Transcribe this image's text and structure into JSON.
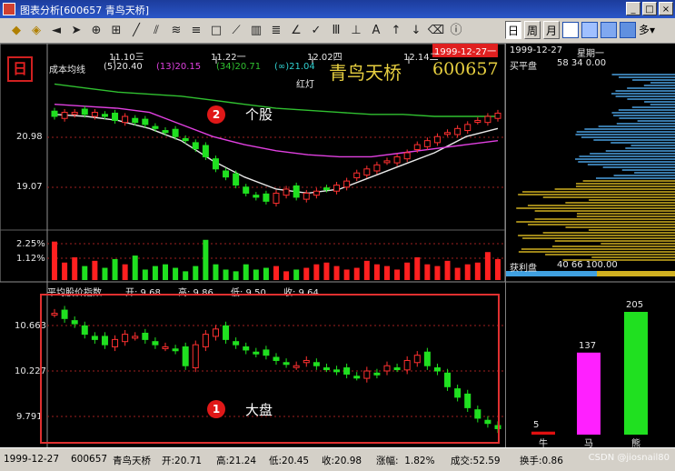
{
  "window": {
    "title": "图表分析[600657 青鸟天桥]",
    "min_label": "_",
    "max_label": "□",
    "close_label": "×"
  },
  "toolbar": {
    "icons": [
      "pin-icon",
      "diamond-icon",
      "arrow-left-icon",
      "cursor-icon",
      "zoom-in-icon",
      "zoom-fit-icon",
      "line-icon",
      "parallel-lines-icon",
      "channel-icon",
      "fan-icon",
      "rectangle-icon",
      "ray-icon",
      "gann-icon",
      "fibonacci-icon",
      "angle-icon",
      "tick-icon",
      "cycle-icon",
      "measure-icon",
      "text-icon",
      "up-arrow-icon",
      "down-arrow-icon",
      "delete-icon",
      "info-icon"
    ],
    "period_day": "日",
    "period_week": "周",
    "period_month": "月",
    "more_label": "多"
  },
  "kline": {
    "indicator_name": "成本均线",
    "ma5": "(5)20.40",
    "ma13": "(13)20.15",
    "ma34": "(34)20.71",
    "ma_inf": "(∞)21.04",
    "stock_name": "青鸟天桥",
    "stock_code": "600657",
    "cursor_date": "1999-12-27一",
    "date_labels": [
      "11.10三",
      "11.22一",
      "12.02四",
      "12.14二"
    ],
    "price_labels": [
      "20.98",
      "19.07"
    ],
    "vol_labels": [
      "2.25%",
      "1.12%"
    ],
    "hongdeng": "红灯",
    "side_logo": "日"
  },
  "chart_data": [
    {
      "type": "candlestick",
      "title": "个股",
      "y_ticks": [
        20.98,
        19.07
      ],
      "ylim": [
        18.2,
        21.8
      ],
      "closes": [
        20.9,
        21.0,
        21.0,
        20.95,
        21.0,
        20.9,
        20.8,
        20.9,
        20.75,
        20.7,
        20.6,
        20.5,
        20.4,
        20.3,
        20.1,
        19.9,
        19.6,
        19.4,
        19.2,
        19.0,
        18.9,
        18.8,
        19.0,
        19.1,
        18.9,
        19.0,
        19.05,
        19.1,
        19.2,
        19.3,
        19.5,
        19.6,
        19.7,
        19.8,
        19.9,
        20.0,
        20.2,
        20.3,
        20.4,
        20.5,
        20.6,
        20.7,
        20.8,
        20.9,
        20.98
      ],
      "ma_series": [
        {
          "name": "(5)",
          "color": "#e8e8e8",
          "values": [
            20.95,
            20.9,
            20.8,
            20.6,
            20.3,
            19.8,
            19.4,
            19.1,
            19.0,
            19.1,
            19.4,
            19.7,
            20.0,
            20.4,
            20.6
          ]
        },
        {
          "name": "(13)",
          "color": "#e040e0",
          "values": [
            21.2,
            21.15,
            21.1,
            21.0,
            20.7,
            20.4,
            20.2,
            20.05,
            19.95,
            19.9,
            19.9,
            20.0,
            20.1,
            20.2,
            20.3
          ]
        },
        {
          "name": "(34)",
          "color": "#30c030",
          "values": [
            21.7,
            21.6,
            21.5,
            21.45,
            21.4,
            21.3,
            21.2,
            21.1,
            21.05,
            21.0,
            20.95,
            20.95,
            20.9,
            20.9,
            20.9
          ]
        }
      ],
      "volume": [
        2.2,
        1.0,
        1.3,
        0.8,
        1.1,
        0.7,
        1.2,
        0.9,
        1.4,
        0.6,
        0.8,
        0.9,
        0.7,
        0.5,
        0.8,
        2.3,
        0.9,
        0.6,
        0.5,
        0.9,
        0.6,
        0.7,
        0.8,
        0.5,
        0.6,
        0.7,
        0.9,
        1.0,
        0.8,
        0.6,
        0.7,
        1.1,
        0.9,
        0.8,
        0.6,
        1.0,
        1.3,
        0.9,
        0.8,
        1.1,
        0.7,
        0.9,
        1.0,
        1.6,
        1.2
      ]
    },
    {
      "type": "candlestick",
      "title": "大盘",
      "y_ticks": [
        10.663,
        10.227,
        9.791
      ],
      "ylim": [
        9.6,
        10.9
      ],
      "header_label": "平均股价指数",
      "header_open": "开: 9.68",
      "header_high": "高: 9.86",
      "header_low": "低: 9.50",
      "header_close": "收: 9.64",
      "closes": [
        10.8,
        10.75,
        10.7,
        10.6,
        10.55,
        10.5,
        10.55,
        10.6,
        10.58,
        10.55,
        10.5,
        10.48,
        10.45,
        10.3,
        10.5,
        10.6,
        10.65,
        10.55,
        10.5,
        10.45,
        10.42,
        10.4,
        10.35,
        10.32,
        10.3,
        10.35,
        10.3,
        10.28,
        10.25,
        10.22,
        10.2,
        10.25,
        10.22,
        10.3,
        10.28,
        10.35,
        10.4,
        10.3,
        10.25,
        10.1,
        10.0,
        9.9,
        9.8,
        9.75,
        9.7
      ]
    },
    {
      "type": "bar",
      "title": "",
      "categories": [
        "牛",
        "马",
        "熊"
      ],
      "values": [
        5,
        137,
        205
      ],
      "colors": [
        "#e01010",
        "#ff20ff",
        "#20e020"
      ]
    }
  ],
  "side": {
    "date": "1999-12-27",
    "weekday": "星期一",
    "chip_label": "买平盘",
    "chip_value": "58 34 0.00",
    "profit_label": "获利盘",
    "profit_value": "40 66 100.00"
  },
  "status": {
    "date": "1999-12-27",
    "code": "600657",
    "name": "青鸟天桥",
    "open": "开:20.71",
    "high": "高:21.24",
    "low": "低:20.45",
    "close": "收:20.98",
    "change": "涨幅:  1.82%",
    "turnover_vol": "成交:52.59",
    "turnover_rate": "换手:0.86"
  },
  "annotations": {
    "label_1_num": "1",
    "label_1_text": "大盘",
    "label_2_num": "2",
    "label_2_text": "个股"
  },
  "watermark": "CSDN @jiosnail80"
}
